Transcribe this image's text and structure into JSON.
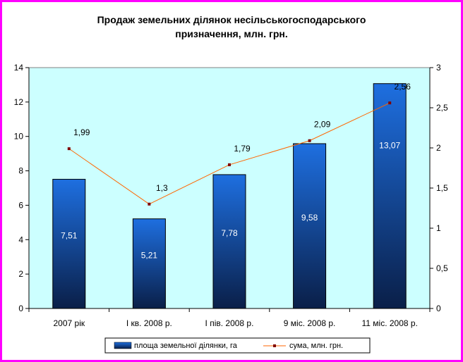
{
  "chart_data": {
    "type": "bar",
    "title_lines": [
      "Продаж земельних ділянок несільськогосподарського",
      "призначення, млн. грн."
    ],
    "categories": [
      "2007 рік",
      "І кв. 2008 р.",
      "І пів. 2008 р.",
      "9 міс. 2008 р.",
      "11 міс. 2008 р."
    ],
    "series": [
      {
        "name": "площа земельної ділянки, га",
        "type": "bar",
        "axis": "left",
        "values": [
          7.51,
          5.21,
          7.78,
          9.58,
          13.07
        ],
        "labels": [
          "7,51",
          "5,21",
          "7,78",
          "9,58",
          "13,07"
        ]
      },
      {
        "name": "сума, млн. грн.",
        "type": "line",
        "axis": "right",
        "values": [
          1.99,
          1.3,
          1.79,
          2.09,
          2.56
        ],
        "labels": [
          "1,99",
          "1,3",
          "1,79",
          "2,09",
          "2,56"
        ]
      }
    ],
    "y_left": {
      "min": 0,
      "max": 14,
      "step": 2,
      "ticks": [
        "0",
        "2",
        "4",
        "6",
        "8",
        "10",
        "12",
        "14"
      ]
    },
    "y_right": {
      "min": 0,
      "max": 3,
      "step": 0.5,
      "ticks": [
        "0",
        "0,5",
        "1",
        "1,5",
        "2",
        "2,5",
        "3"
      ]
    },
    "legend_position": "bottom",
    "colors": {
      "frame": "#ff00ff",
      "plot_bg": "#ccffff",
      "bar_top": "#1e6fe0",
      "bar_bottom": "#0a1f48",
      "line": "#ff6600",
      "marker": "#800000"
    }
  }
}
